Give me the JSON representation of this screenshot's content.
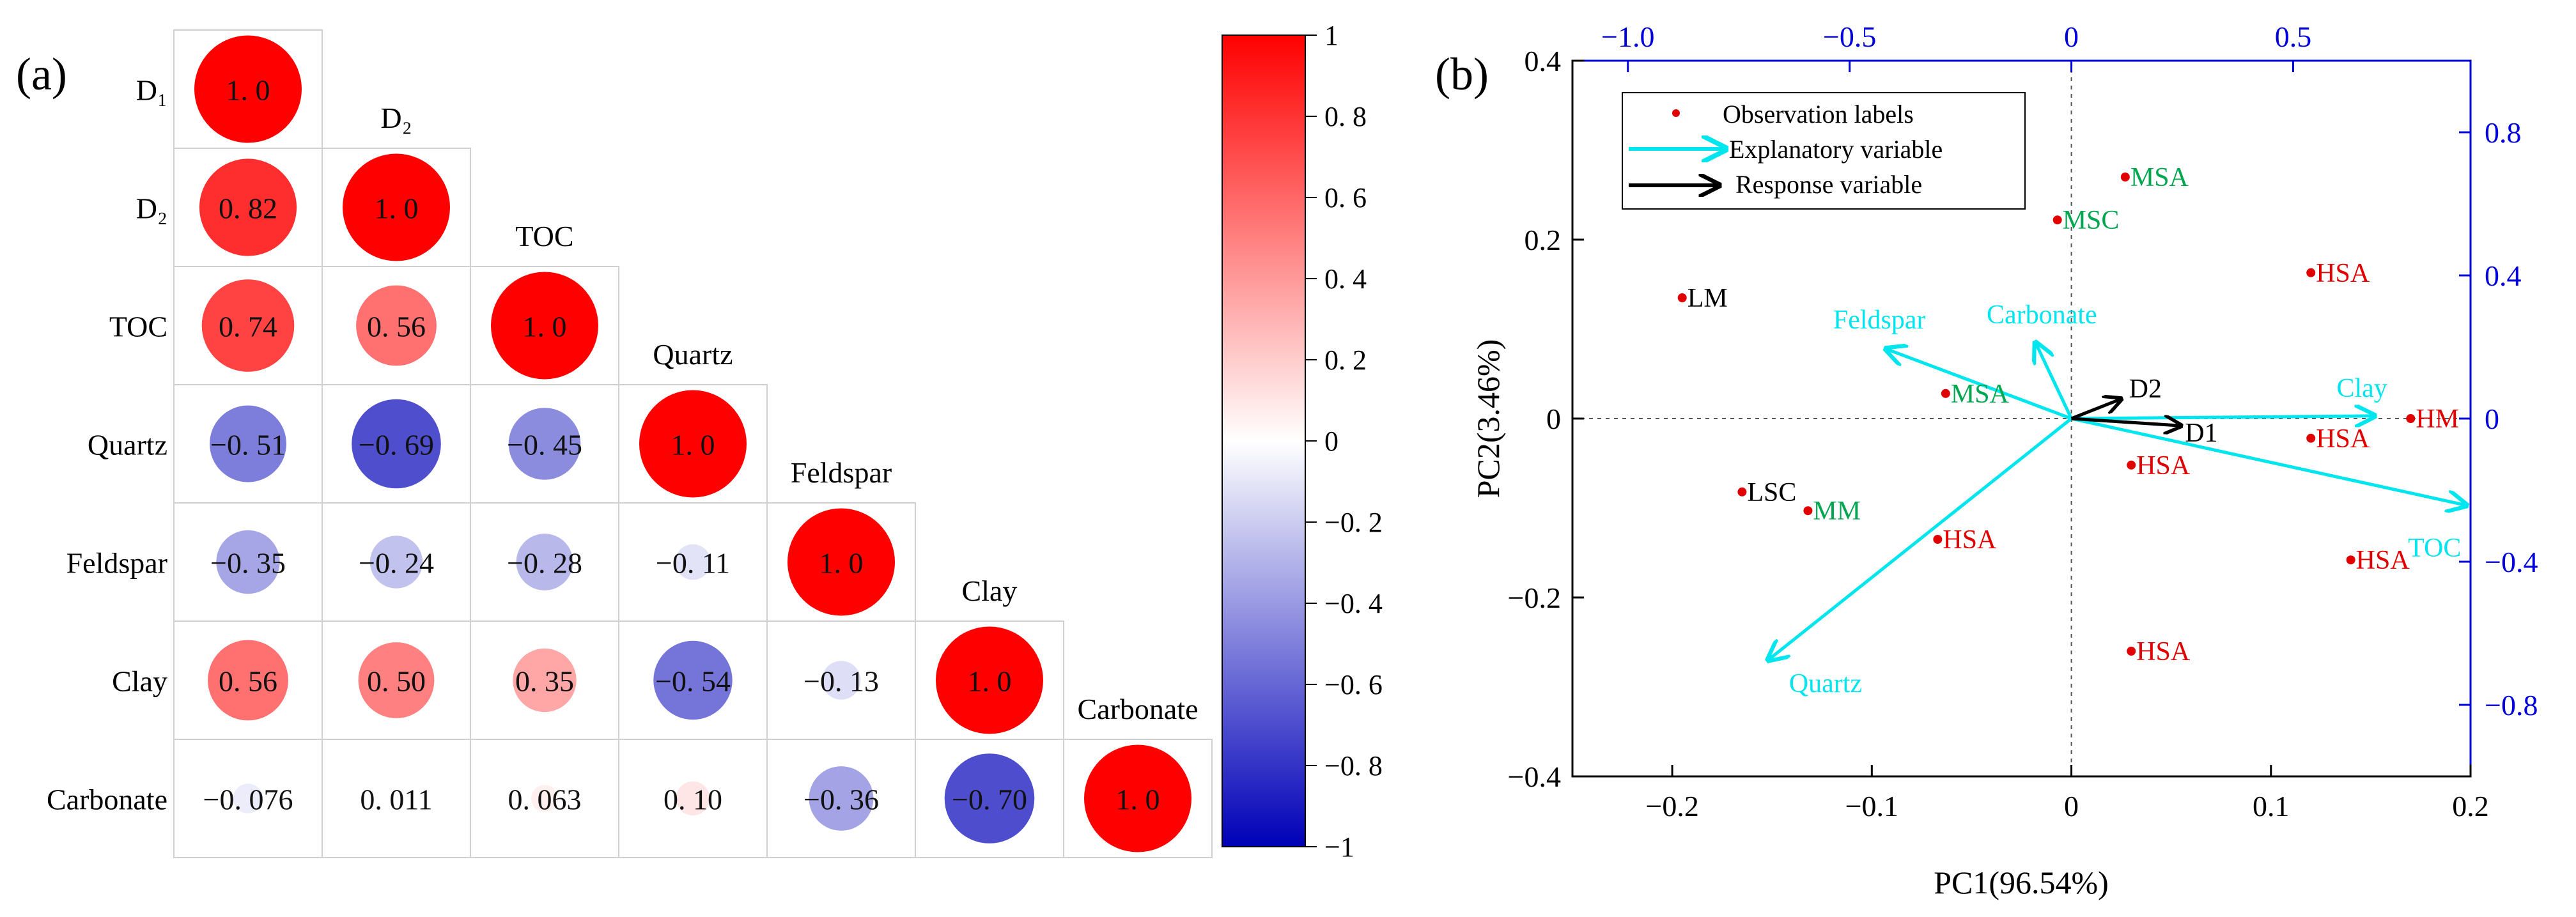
{
  "colors": {
    "positive": "#ff0000",
    "negative": "#0000b8",
    "explanatory": "#00e5ee",
    "response": "#000000",
    "obs_point": "#e00000",
    "label_green": "#00a650",
    "label_red": "#e00000",
    "label_black": "#000000",
    "blue_axis": "#0000dd",
    "grid": "#cfcfcf"
  },
  "chart_data": [
    {
      "type": "heatmap",
      "panel_label": "(a)",
      "variables": [
        "D₁",
        "D₂",
        "TOC",
        "Quartz",
        "Feldspar",
        "Clay",
        "Carbonate"
      ],
      "row_labels": [
        "D₁",
        "D₂",
        "TOC",
        "Quartz",
        "Feldspar",
        "Clay",
        "Carbonate"
      ],
      "diagonal_labels": [
        "D₁",
        "D₂",
        "TOC",
        "Quartz",
        "Feldspar",
        "Clay",
        "Carbonate"
      ],
      "matrix": [
        [
          1.0
        ],
        [
          0.82,
          1.0
        ],
        [
          0.74,
          0.56,
          1.0
        ],
        [
          -0.51,
          -0.69,
          -0.45,
          1.0
        ],
        [
          -0.35,
          -0.24,
          -0.28,
          -0.11,
          1.0
        ],
        [
          0.56,
          0.5,
          0.35,
          -0.54,
          -0.13,
          1.0
        ],
        [
          -0.076,
          0.011,
          0.063,
          0.1,
          -0.36,
          -0.7,
          1.0
        ]
      ],
      "cell_text": [
        [
          "1. 0"
        ],
        [
          "0. 82",
          "1. 0"
        ],
        [
          "0. 74",
          "0. 56",
          "1. 0"
        ],
        [
          "−0. 51",
          "−0. 69",
          "−0. 45",
          "1. 0"
        ],
        [
          "−0. 35",
          "−0. 24",
          "−0. 28",
          "−0. 11",
          "1. 0"
        ],
        [
          "0. 56",
          "0. 50",
          "0. 35",
          "−0. 54",
          "−0. 13",
          "1. 0"
        ],
        [
          "−0. 076",
          "0. 011",
          "0. 063",
          "0. 10",
          "−0. 36",
          "−0. 70",
          "1. 0"
        ]
      ],
      "colorbar": {
        "range": [
          -1,
          1
        ],
        "ticks": [
          1,
          0.8,
          0.6,
          0.4,
          0.2,
          0,
          -0.2,
          -0.4,
          -0.6,
          -0.8,
          -1
        ],
        "tick_labels": [
          "1",
          "0. 8",
          "0. 6",
          "0. 4",
          "0. 2",
          "0",
          "−0. 2",
          "−0. 4",
          "−0. 6",
          "−0. 8",
          "−1"
        ]
      }
    },
    {
      "type": "scatter",
      "panel_label": "(b)",
      "xlabel": "PC1(96.54%)",
      "ylabel": "PC2(3.46%)",
      "xlim": [
        -0.25,
        0.2
      ],
      "ylim": [
        -0.4,
        0.4
      ],
      "x_ticks": [
        -0.2,
        -0.1,
        0,
        0.1,
        0.2
      ],
      "x_tick_labels": [
        "−0.2",
        "−0.1",
        "0",
        "0.1",
        "0.2"
      ],
      "y_ticks": [
        -0.4,
        -0.2,
        0,
        0.2,
        0.4
      ],
      "y_tick_labels": [
        "−0.4",
        "−0.2",
        "0",
        "0.2",
        "0.4"
      ],
      "top_axis": {
        "range": [
          -1.125,
          0.9
        ],
        "ticks": [
          -1.0,
          -0.5,
          0,
          0.5
        ],
        "tick_labels": [
          "−1.0",
          "−0.5",
          "0",
          "0.5"
        ]
      },
      "right_axis": {
        "range": [
          -1.0,
          1.0
        ],
        "ticks": [
          0.8,
          0.4,
          0,
          -0.4,
          -0.8
        ],
        "tick_labels": [
          "0.8",
          "0.4",
          "0",
          "−0.4",
          "−0.8"
        ]
      },
      "legend": {
        "placement": "top-left",
        "entries": [
          "Observation labels",
          "Explanatory variable",
          "Response variable"
        ]
      },
      "observations": [
        {
          "label": "MSA",
          "x": 0.027,
          "y": 0.27,
          "color": "green"
        },
        {
          "label": "MSC",
          "x": -0.007,
          "y": 0.222,
          "color": "green"
        },
        {
          "label": "LM",
          "x": -0.195,
          "y": 0.135,
          "color": "black"
        },
        {
          "label": "HSA",
          "x": 0.12,
          "y": 0.163,
          "color": "red"
        },
        {
          "label": "MSA",
          "x": -0.063,
          "y": 0.028,
          "color": "green"
        },
        {
          "label": "HM",
          "x": 0.17,
          "y": 0.0,
          "color": "red"
        },
        {
          "label": "HSA",
          "x": 0.12,
          "y": -0.022,
          "color": "red"
        },
        {
          "label": "HSA",
          "x": 0.03,
          "y": -0.052,
          "color": "red"
        },
        {
          "label": "LSC",
          "x": -0.165,
          "y": -0.082,
          "color": "black"
        },
        {
          "label": "MM",
          "x": -0.132,
          "y": -0.103,
          "color": "green"
        },
        {
          "label": "HSA",
          "x": -0.067,
          "y": -0.135,
          "color": "red"
        },
        {
          "label": "HSA",
          "x": 0.14,
          "y": -0.158,
          "color": "red"
        },
        {
          "label": "HSA",
          "x": 0.03,
          "y": -0.26,
          "color": "red"
        }
      ],
      "explanatory_vectors": [
        {
          "label": "Feldspar",
          "x": -0.093,
          "y": 0.078
        },
        {
          "label": "Carbonate",
          "x": -0.018,
          "y": 0.085
        },
        {
          "label": "Clay",
          "x": 0.152,
          "y": 0.003
        },
        {
          "label": "TOC",
          "x": 0.198,
          "y": -0.097
        },
        {
          "label": "Quartz",
          "x": -0.152,
          "y": -0.27
        }
      ],
      "response_vectors": [
        {
          "label": "D2",
          "x": 0.025,
          "y": 0.022
        },
        {
          "label": "D1",
          "x": 0.055,
          "y": -0.008
        }
      ]
    }
  ]
}
